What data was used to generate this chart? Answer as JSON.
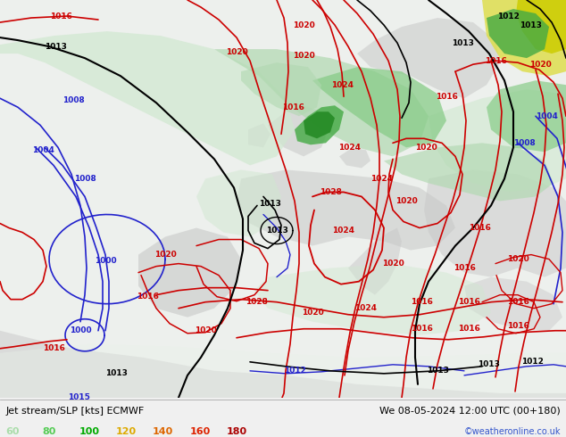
{
  "title_left": "Jet stream/SLP [kts] ECMWF",
  "title_right": "We 08-05-2024 12:00 UTC (00+180)",
  "copyright": "©weatheronline.co.uk",
  "legend_values": [
    "60",
    "80",
    "100",
    "120",
    "140",
    "160",
    "180"
  ],
  "legend_colors": [
    "#aaddaa",
    "#55cc55",
    "#00aa00",
    "#ddaa00",
    "#dd6600",
    "#dd2200",
    "#aa0000"
  ],
  "bg_color": "#f0f0f0",
  "bottom_bar_color": "#ffffff",
  "fig_width": 6.34,
  "fig_height": 4.9,
  "dpi": 100,
  "contour_red": "#cc0000",
  "contour_blue": "#2222cc",
  "contour_black": "#000000",
  "contour_gray": "#888888",
  "map_bg": "#e8eef8",
  "land_very_light": "#e8f0e8",
  "land_light": "#d0e8d0",
  "land_medium": "#b0d8b0",
  "land_strong": "#88cc88",
  "land_dark": "#44aa44",
  "land_dark2": "#228822",
  "yellow_area": "#dddd44",
  "yellow_bright": "#eeee00",
  "gray_land": "#c8c8c8",
  "font_size_label": 8,
  "font_size_legend": 8,
  "font_size_copy": 7,
  "font_size_pressure": 6
}
